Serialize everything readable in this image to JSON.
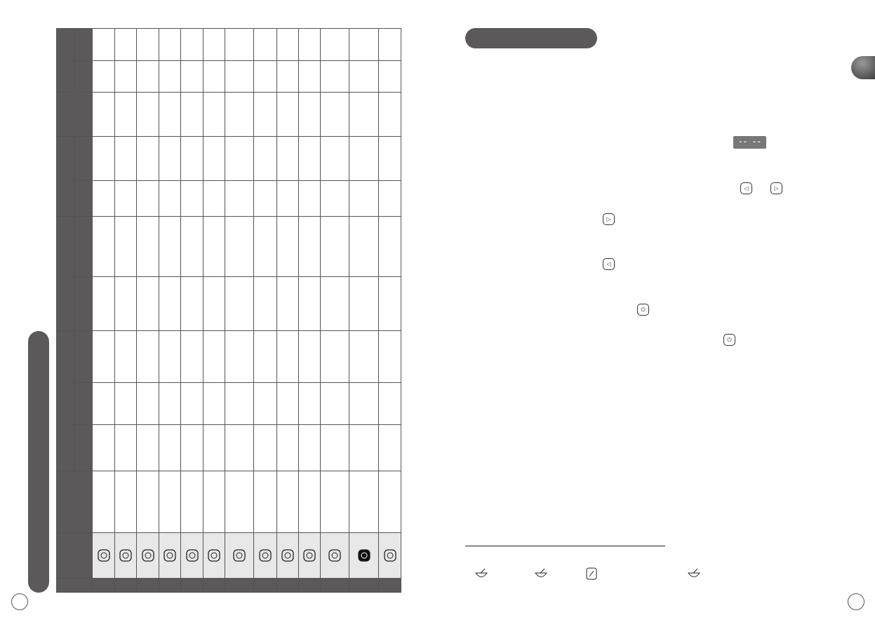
{
  "colors": {
    "dark": "#5b5959",
    "icon_row": "#e8e8e8",
    "line": "#555555"
  },
  "table": {
    "program_icons": [
      "grill-icon",
      "roast-icon",
      "cake-icon",
      "steam-icon",
      "pot-grain-icon",
      "ladle-bowl-icon",
      "vegetable-box-icon",
      "rice-cooker-icon",
      "dough-icon",
      "rotation-icon",
      "cup-icon",
      "night-timer-icon",
      "timer-icon"
    ]
  },
  "display": {
    "value": "-- --"
  },
  "buttons": {
    "left": "◁",
    "right": "▷",
    "power": "⏻"
  },
  "legend_icons": [
    "porridge-icon",
    "soup-ladle-icon",
    "vegetable-icon",
    "rice-bowl-icon"
  ]
}
